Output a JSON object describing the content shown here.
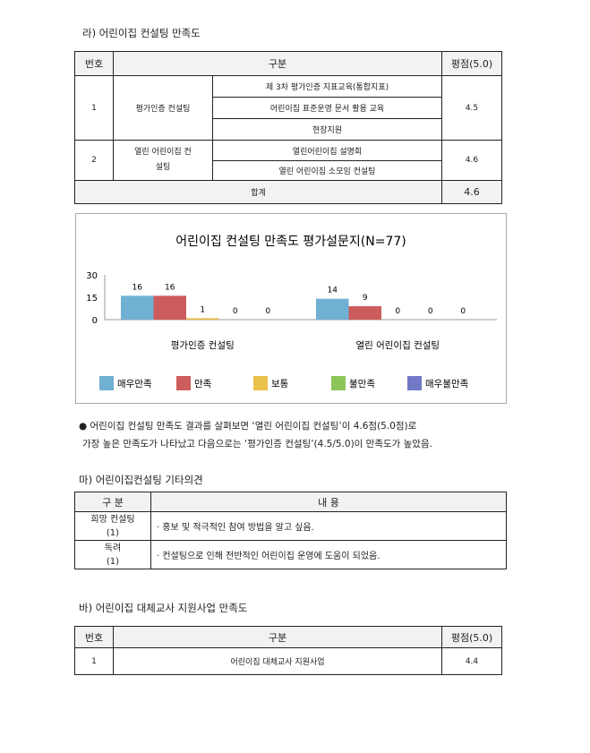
{
  "section_ra": {
    "title": "라) 어린이집 컨설팅 만족도",
    "headers": [
      "번호",
      "구분",
      "평점(5.0)"
    ],
    "rows": [
      {
        "no": "1",
        "category": "평가인증 컨설팅",
        "items": [
          "제 3차 평가인증 지표교육(통합지표)",
          "어린이집 표준운영 문서 활용 교육",
          "현장지원"
        ],
        "score": "4.5"
      },
      {
        "no": "2",
        "category": "열린 어린이집 컨설팅",
        "items": [
          "열린어린이집 설명회",
          "열린 어린이집 소모임 컨설팅"
        ],
        "score": "4.6"
      }
    ],
    "total_label": "합계",
    "total_score": "4.6"
  },
  "chart_data": {
    "type": "bar",
    "title": "어린이집 컨설팅 만족도 평가설문지(N=77)",
    "categories": [
      "평가인증 컨설팅",
      "열린 어린이집 컨설팅"
    ],
    "yticks": [
      "0",
      "15",
      "30"
    ],
    "ylim": [
      0,
      30
    ],
    "legend_position": "bottom",
    "series": [
      {
        "name": "매우만족",
        "color": "#6fb0d3",
        "values": [
          16,
          14
        ]
      },
      {
        "name": "만족",
        "color": "#cd5c5c",
        "values": [
          16,
          9
        ]
      },
      {
        "name": "보통",
        "color": "#e9c04a",
        "values": [
          1,
          0
        ]
      },
      {
        "name": "불만족",
        "color": "#8cc65a",
        "values": [
          0,
          0
        ]
      },
      {
        "name": "매우불만족",
        "color": "#7279c7",
        "values": [
          0,
          0
        ]
      }
    ]
  },
  "summary": {
    "line1": "어린이집 컨설팅 만족도 결과를 살펴보면 ‘열린 어린이집 컨설팅’이 4.6점(5.0점)로",
    "line2": "가장 높은 만족도가 나타났고 다음으로는 ‘평가인증 컨설팅’(4.5/5.0)이 만족도가 높았음."
  },
  "section_ma": {
    "title": "마) 어린이집컨설팅 기타의견",
    "headers": [
      "구  분",
      "내   용"
    ],
    "rows": [
      {
        "cat": "희망 컨설팅",
        "count": "(1)",
        "content": "· 홍보 및 적극적인 참여 방법을 알고 싶음."
      },
      {
        "cat": "독려",
        "count": "(1)",
        "content": "· 컨설팅으로 인해 전반적인 어린이집 운영에 도움이 되었음."
      }
    ]
  },
  "section_ba": {
    "title": "바) 어린이집 대체교사 지원사업 만족도",
    "headers": [
      "번호",
      "구분",
      "평점(5.0)"
    ],
    "rows": [
      {
        "no": "1",
        "category": "어린이집 대체교사 지원사업",
        "score": "4.4"
      }
    ]
  }
}
